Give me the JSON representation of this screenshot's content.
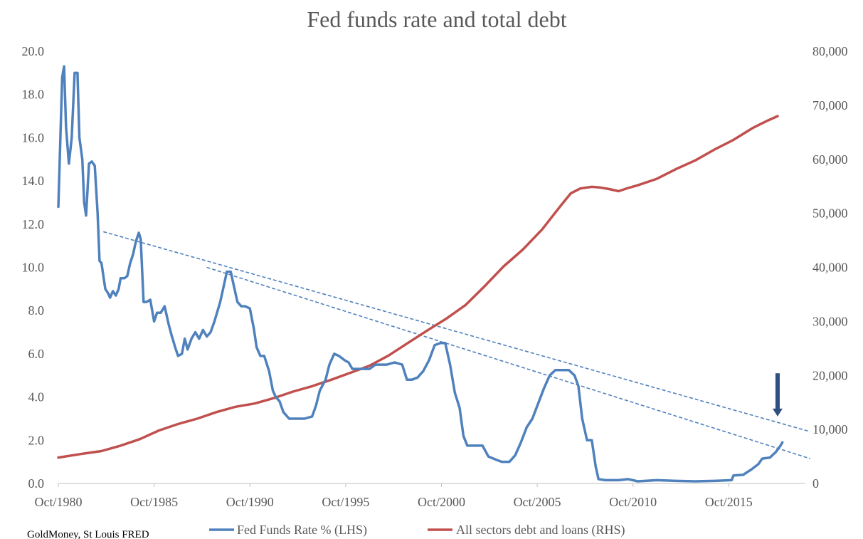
{
  "chart_data": {
    "type": "line",
    "title": "Fed funds rate and total debt",
    "source": "GoldMoney, St Louis FRED",
    "x_tick_labels": [
      "Oct/1980",
      "Oct/1985",
      "Oct/1990",
      "Oct/1995",
      "Oct/2000",
      "Oct/2005",
      "Oct/2010",
      "Oct/2015"
    ],
    "x_tick_years": [
      1980.75,
      1985.75,
      1990.75,
      1995.75,
      2000.75,
      2005.75,
      2010.75,
      2015.75
    ],
    "xlim": [
      1980.75,
      2019.75
    ],
    "y_left": {
      "ylim": [
        0,
        20
      ],
      "tick_values": [
        0,
        2,
        4,
        6,
        8,
        10,
        12,
        14,
        16,
        18,
        20
      ],
      "tick_labels": [
        "0.0",
        "2.0",
        "4.0",
        "6.0",
        "8.0",
        "10.0",
        "12.0",
        "14.0",
        "16.0",
        "18.0",
        "20.0"
      ]
    },
    "y_right": {
      "ylim": [
        0,
        80000
      ],
      "tick_values": [
        0,
        10000,
        20000,
        30000,
        40000,
        50000,
        60000,
        70000,
        80000
      ],
      "tick_labels": [
        "0",
        "10,000",
        "20,000",
        "30,000",
        "40,000",
        "50,000",
        "60,000",
        "70,000",
        "80,000"
      ]
    },
    "grid": false,
    "legend_position": "bottom",
    "series": [
      {
        "name": "Fed Funds Rate % (LHS)",
        "axis": "left",
        "color": "#4f81bd",
        "points": [
          [
            1980.75,
            12.8
          ],
          [
            1980.95,
            18.8
          ],
          [
            1981.05,
            19.3
          ],
          [
            1981.15,
            16.5
          ],
          [
            1981.3,
            14.8
          ],
          [
            1981.45,
            16.0
          ],
          [
            1981.6,
            19.0
          ],
          [
            1981.75,
            19.0
          ],
          [
            1981.85,
            16.0
          ],
          [
            1982.0,
            15.0
          ],
          [
            1982.1,
            13.0
          ],
          [
            1982.2,
            12.4
          ],
          [
            1982.35,
            14.8
          ],
          [
            1982.5,
            14.9
          ],
          [
            1982.65,
            14.7
          ],
          [
            1982.8,
            12.5
          ],
          [
            1982.9,
            10.3
          ],
          [
            1983.0,
            10.2
          ],
          [
            1983.2,
            9.0
          ],
          [
            1983.35,
            8.8
          ],
          [
            1983.45,
            8.6
          ],
          [
            1983.6,
            8.9
          ],
          [
            1983.75,
            8.7
          ],
          [
            1983.9,
            9.0
          ],
          [
            1984.0,
            9.5
          ],
          [
            1984.2,
            9.5
          ],
          [
            1984.35,
            9.6
          ],
          [
            1984.5,
            10.2
          ],
          [
            1984.65,
            10.6
          ],
          [
            1984.8,
            11.2
          ],
          [
            1984.95,
            11.6
          ],
          [
            1985.05,
            11.3
          ],
          [
            1985.2,
            8.4
          ],
          [
            1985.35,
            8.4
          ],
          [
            1985.55,
            8.5
          ],
          [
            1985.75,
            7.5
          ],
          [
            1985.9,
            7.9
          ],
          [
            1986.1,
            7.9
          ],
          [
            1986.3,
            8.2
          ],
          [
            1986.5,
            7.4
          ],
          [
            1986.65,
            6.9
          ],
          [
            1986.85,
            6.3
          ],
          [
            1987.0,
            5.9
          ],
          [
            1987.2,
            6.0
          ],
          [
            1987.35,
            6.7
          ],
          [
            1987.5,
            6.2
          ],
          [
            1987.7,
            6.7
          ],
          [
            1987.9,
            7.0
          ],
          [
            1988.1,
            6.7
          ],
          [
            1988.3,
            7.1
          ],
          [
            1988.5,
            6.8
          ],
          [
            1988.7,
            7.0
          ],
          [
            1988.9,
            7.5
          ],
          [
            1989.2,
            8.4
          ],
          [
            1989.4,
            9.2
          ],
          [
            1989.55,
            9.8
          ],
          [
            1989.75,
            9.8
          ],
          [
            1989.9,
            9.2
          ],
          [
            1990.1,
            8.4
          ],
          [
            1990.3,
            8.2
          ],
          [
            1990.5,
            8.2
          ],
          [
            1990.75,
            8.1
          ],
          [
            1990.95,
            7.2
          ],
          [
            1991.1,
            6.3
          ],
          [
            1991.3,
            5.9
          ],
          [
            1991.5,
            5.9
          ],
          [
            1991.75,
            5.2
          ],
          [
            1991.95,
            4.3
          ],
          [
            1992.1,
            4.0
          ],
          [
            1992.3,
            3.8
          ],
          [
            1992.5,
            3.3
          ],
          [
            1992.8,
            3.0
          ],
          [
            1993.2,
            3.0
          ],
          [
            1993.6,
            3.0
          ],
          [
            1994.0,
            3.1
          ],
          [
            1994.2,
            3.6
          ],
          [
            1994.4,
            4.3
          ],
          [
            1994.7,
            4.8
          ],
          [
            1994.9,
            5.5
          ],
          [
            1995.15,
            6.0
          ],
          [
            1995.4,
            5.9
          ],
          [
            1995.7,
            5.7
          ],
          [
            1995.9,
            5.6
          ],
          [
            1996.1,
            5.3
          ],
          [
            1996.4,
            5.3
          ],
          [
            1996.7,
            5.3
          ],
          [
            1997.0,
            5.3
          ],
          [
            1997.3,
            5.5
          ],
          [
            1997.6,
            5.5
          ],
          [
            1997.9,
            5.5
          ],
          [
            1998.3,
            5.6
          ],
          [
            1998.7,
            5.5
          ],
          [
            1998.95,
            4.8
          ],
          [
            1999.2,
            4.8
          ],
          [
            1999.5,
            4.9
          ],
          [
            1999.8,
            5.2
          ],
          [
            2000.1,
            5.7
          ],
          [
            2000.4,
            6.4
          ],
          [
            2000.7,
            6.5
          ],
          [
            2000.95,
            6.5
          ],
          [
            2001.2,
            5.5
          ],
          [
            2001.45,
            4.2
          ],
          [
            2001.7,
            3.5
          ],
          [
            2001.9,
            2.2
          ],
          [
            2002.1,
            1.75
          ],
          [
            2002.5,
            1.75
          ],
          [
            2002.9,
            1.75
          ],
          [
            2003.2,
            1.25
          ],
          [
            2003.6,
            1.1
          ],
          [
            2003.9,
            1.0
          ],
          [
            2004.3,
            1.0
          ],
          [
            2004.6,
            1.3
          ],
          [
            2004.9,
            1.9
          ],
          [
            2005.2,
            2.6
          ],
          [
            2005.5,
            3.0
          ],
          [
            2005.8,
            3.7
          ],
          [
            2006.1,
            4.4
          ],
          [
            2006.4,
            5.0
          ],
          [
            2006.7,
            5.25
          ],
          [
            2007.0,
            5.25
          ],
          [
            2007.4,
            5.25
          ],
          [
            2007.7,
            5.0
          ],
          [
            2007.9,
            4.5
          ],
          [
            2008.1,
            3.0
          ],
          [
            2008.35,
            2.0
          ],
          [
            2008.6,
            2.0
          ],
          [
            2008.8,
            0.8
          ],
          [
            2008.95,
            0.2
          ],
          [
            2009.3,
            0.15
          ],
          [
            2010.0,
            0.15
          ],
          [
            2010.5,
            0.2
          ],
          [
            2011.0,
            0.1
          ],
          [
            2012.0,
            0.15
          ],
          [
            2013.0,
            0.12
          ],
          [
            2014.0,
            0.1
          ],
          [
            2015.0,
            0.12
          ],
          [
            2015.9,
            0.15
          ],
          [
            2016.0,
            0.37
          ],
          [
            2016.5,
            0.4
          ],
          [
            2016.95,
            0.66
          ],
          [
            2017.3,
            0.9
          ],
          [
            2017.5,
            1.15
          ],
          [
            2017.9,
            1.2
          ],
          [
            2018.2,
            1.45
          ],
          [
            2018.45,
            1.75
          ],
          [
            2018.55,
            1.9
          ]
        ]
      },
      {
        "name": "All sectors debt and loans (RHS)",
        "axis": "right",
        "color": "#c0504d",
        "points": [
          [
            1980.75,
            4800
          ],
          [
            1982,
            5500
          ],
          [
            1983,
            6000
          ],
          [
            1984,
            7000
          ],
          [
            1985,
            8200
          ],
          [
            1986,
            9800
          ],
          [
            1987,
            11000
          ],
          [
            1988,
            12000
          ],
          [
            1989,
            13200
          ],
          [
            1990,
            14200
          ],
          [
            1991,
            14800
          ],
          [
            1992,
            15800
          ],
          [
            1993,
            17000
          ],
          [
            1994,
            18000
          ],
          [
            1995,
            19200
          ],
          [
            1996,
            20500
          ],
          [
            1997,
            21800
          ],
          [
            1998,
            23700
          ],
          [
            1999,
            26000
          ],
          [
            2000,
            28300
          ],
          [
            2001,
            30500
          ],
          [
            2002,
            33000
          ],
          [
            2003,
            36500
          ],
          [
            2004,
            40200
          ],
          [
            2005,
            43300
          ],
          [
            2006,
            47000
          ],
          [
            2007,
            51500
          ],
          [
            2007.5,
            53700
          ],
          [
            2008,
            54600
          ],
          [
            2008.6,
            54900
          ],
          [
            2009,
            54800
          ],
          [
            2009.5,
            54500
          ],
          [
            2010,
            54100
          ],
          [
            2010.5,
            54700
          ],
          [
            2011,
            55200
          ],
          [
            2012,
            56400
          ],
          [
            2013,
            58200
          ],
          [
            2014,
            59800
          ],
          [
            2015,
            61800
          ],
          [
            2016,
            63600
          ],
          [
            2017,
            65800
          ],
          [
            2017.8,
            67200
          ],
          [
            2018.3,
            68000
          ]
        ]
      }
    ],
    "trendlines": [
      {
        "style": "dashed",
        "color": "#4f81bd",
        "from": [
          1983.1,
          11.65
        ],
        "to": [
          2020.0,
          2.4
        ]
      },
      {
        "style": "dashed",
        "color": "#4f81bd",
        "from": [
          1988.5,
          10.0
        ],
        "to": [
          2020.0,
          1.15
        ]
      }
    ],
    "annotations": [
      {
        "type": "arrow",
        "direction": "down",
        "color": "#2e4f7f",
        "x": 2018.3,
        "y_from": 5.1,
        "y_to": 3.1
      }
    ]
  }
}
